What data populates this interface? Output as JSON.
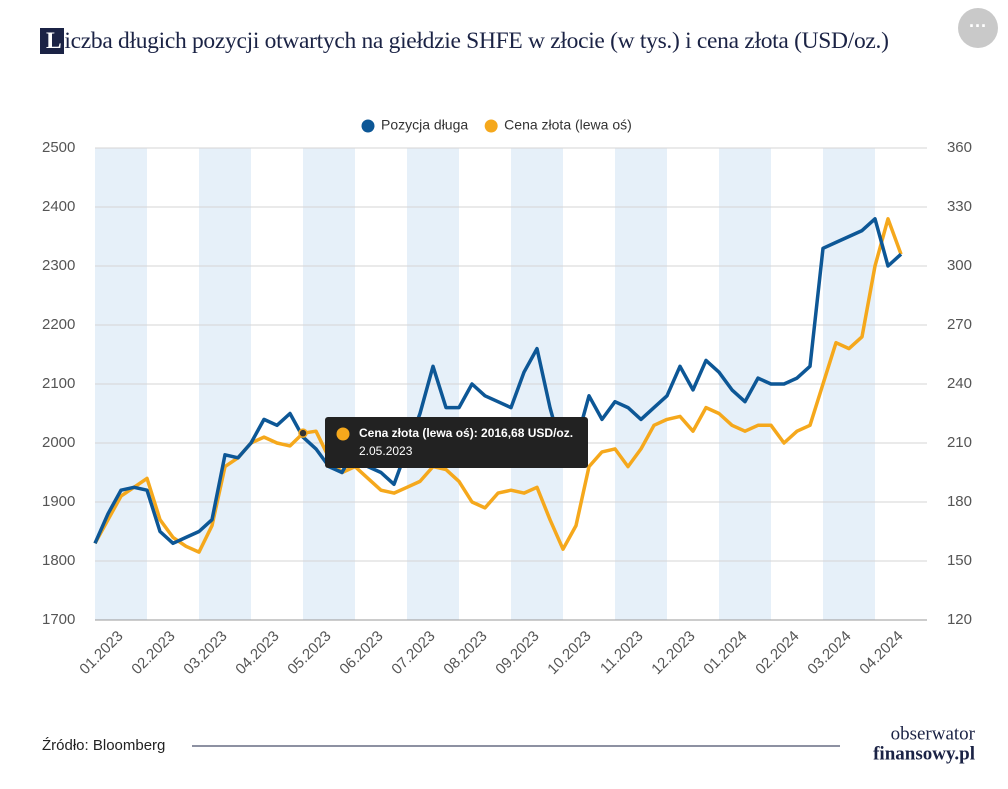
{
  "chart_data": {
    "type": "line",
    "title": "Liczba długich pozycji otwartych na giełdzie SHFE w złocie (w tys.) i cena złota (USD/oz.)",
    "x": [
      0,
      0.25,
      0.5,
      0.75,
      1,
      1.25,
      1.5,
      1.75,
      2,
      2.25,
      2.5,
      2.75,
      3,
      3.25,
      3.5,
      3.75,
      4,
      4.25,
      4.5,
      4.75,
      5,
      5.25,
      5.5,
      5.75,
      6,
      6.25,
      6.5,
      6.75,
      7,
      7.25,
      7.5,
      7.75,
      8,
      8.25,
      8.5,
      8.75,
      9,
      9.25,
      9.5,
      9.75,
      10,
      10.25,
      10.5,
      10.75,
      11,
      11.25,
      11.5,
      11.75,
      12,
      12.25,
      12.5,
      12.75,
      13,
      13.25,
      13.5,
      13.75,
      14,
      14.25,
      14.5,
      14.75,
      15,
      15.25,
      15.5
    ],
    "xlim": [
      0,
      16
    ],
    "xticks": [
      {
        "value": 0,
        "label": "01.2023"
      },
      {
        "value": 1,
        "label": "02.2023"
      },
      {
        "value": 2,
        "label": "03.2023"
      },
      {
        "value": 3,
        "label": "04.2023"
      },
      {
        "value": 4,
        "label": "05.2023"
      },
      {
        "value": 5,
        "label": "06.2023"
      },
      {
        "value": 6,
        "label": "07.2023"
      },
      {
        "value": 7,
        "label": "08.2023"
      },
      {
        "value": 8,
        "label": "09.2023"
      },
      {
        "value": 9,
        "label": "10.2023"
      },
      {
        "value": 10,
        "label": "11.2023"
      },
      {
        "value": 11,
        "label": "12.2023"
      },
      {
        "value": 12,
        "label": "01.2024"
      },
      {
        "value": 13,
        "label": "02.2024"
      },
      {
        "value": 14,
        "label": "03.2024"
      },
      {
        "value": 15,
        "label": "04.2024"
      }
    ],
    "ylim": [
      1700,
      2500
    ],
    "yticks": [
      1700,
      1800,
      1900,
      2000,
      2100,
      2200,
      2300,
      2400,
      2500
    ],
    "y2lim": [
      120,
      360
    ],
    "y2ticks": [
      120,
      150,
      180,
      210,
      240,
      270,
      300,
      330,
      360
    ],
    "grid": true,
    "legend": "top",
    "series": [
      {
        "name": "Pozycja długa",
        "color": "#0d5796",
        "axis": "y2",
        "values": [
          159,
          174,
          186,
          187.5,
          186,
          165,
          159,
          162,
          165,
          171,
          204,
          202.5,
          210,
          222,
          219,
          225,
          213,
          207,
          198,
          195,
          207,
          198,
          195,
          189,
          207,
          225,
          249,
          228,
          228,
          240,
          234,
          231,
          228,
          246,
          258,
          228,
          204,
          210,
          234,
          222,
          231,
          228,
          222,
          228,
          234,
          249,
          237,
          252,
          246,
          237,
          231,
          243,
          240,
          240,
          243,
          249,
          309,
          312,
          315,
          318,
          324,
          300,
          306
        ]
      },
      {
        "name": "Cena złota (lewa oś)",
        "color": "#f5a81c",
        "axis": "y",
        "values": [
          1830,
          1870,
          1910,
          1925,
          1940,
          1870,
          1840,
          1825,
          1815,
          1860,
          1960,
          1975,
          2000,
          2010,
          2000,
          1995,
          2016.68,
          2020,
          1975,
          1950,
          1960,
          1940,
          1920,
          1915,
          1925,
          1935,
          1960,
          1955,
          1935,
          1900,
          1890,
          1915,
          1920,
          1915,
          1925,
          1870,
          1820,
          1860,
          1960,
          1985,
          1990,
          1960,
          1990,
          2030,
          2040,
          2045,
          2020,
          2060,
          2050,
          2030,
          2020,
          2030,
          2030,
          2000,
          2020,
          2030,
          2100,
          2170,
          2160,
          2180,
          2300,
          2380,
          2320
        ]
      }
    ],
    "tooltip": {
      "text": "Cena złota (lewa oś): 2016,68 USD/oz.",
      "date": "2.05.2023"
    },
    "source": "Źródło: Bloomberg",
    "logo": [
      "obserwator",
      "finansowy.pl"
    ]
  }
}
